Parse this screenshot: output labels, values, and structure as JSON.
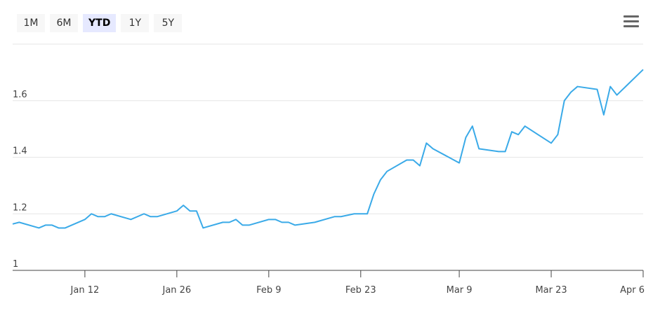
{
  "range_selector": {
    "buttons": [
      "1M",
      "6M",
      "YTD",
      "1Y",
      "5Y"
    ],
    "selected": "YTD"
  },
  "menu_icon": "hamburger-icon",
  "chart_data": {
    "type": "line",
    "title": "",
    "xlabel": "",
    "ylabel": "",
    "ylim": [
      1,
      1.8
    ],
    "yticks": [
      "1",
      "1.2",
      "1.4",
      "1.6"
    ],
    "xticks": [
      "Jan 12",
      "Jan 26",
      "Feb 9",
      "Feb 23",
      "Mar 9",
      "Mar 23",
      "Apr 6"
    ],
    "xrange": [
      "Jan 1",
      "Apr 6"
    ],
    "grid": true,
    "line_color": "#3aaae8",
    "series": [
      {
        "x": [
          "Jan 1",
          "Jan 2",
          "Jan 5",
          "Jan 6",
          "Jan 7",
          "Jan 8",
          "Jan 9",
          "Jan 12",
          "Jan 13",
          "Jan 14",
          "Jan 15",
          "Jan 16",
          "Jan 19",
          "Jan 21",
          "Jan 22",
          "Jan 23",
          "Jan 26",
          "Jan 27",
          "Jan 28",
          "Jan 29",
          "Jan 30",
          "Feb 2",
          "Feb 3",
          "Feb 4",
          "Feb 5",
          "Feb 6",
          "Feb 9",
          "Feb 10",
          "Feb 11",
          "Feb 12",
          "Feb 13",
          "Feb 16",
          "Feb 19",
          "Feb 20",
          "Feb 22",
          "Feb 23",
          "Feb 24",
          "Feb 25",
          "Feb 26",
          "Feb 27",
          "Mar 1",
          "Mar 2",
          "Mar 3",
          "Mar 4",
          "Mar 5",
          "Mar 9",
          "Mar 10",
          "Mar 11",
          "Mar 12",
          "Mar 15",
          "Mar 16",
          "Mar 17",
          "Mar 18",
          "Mar 19",
          "Mar 23",
          "Mar 24",
          "Mar 25",
          "Mar 26",
          "Mar 27",
          "Mar 30",
          "Mar 31",
          "Apr 1",
          "Apr 2",
          "Apr 6"
        ],
        "values": [
          1.164,
          1.17,
          1.15,
          1.16,
          1.16,
          1.15,
          1.15,
          1.18,
          1.2,
          1.19,
          1.19,
          1.2,
          1.18,
          1.2,
          1.19,
          1.19,
          1.21,
          1.23,
          1.21,
          1.21,
          1.15,
          1.17,
          1.17,
          1.18,
          1.16,
          1.16,
          1.18,
          1.18,
          1.17,
          1.17,
          1.16,
          1.17,
          1.19,
          1.19,
          1.2,
          1.2,
          1.2,
          1.27,
          1.32,
          1.35,
          1.39,
          1.39,
          1.37,
          1.45,
          1.43,
          1.38,
          1.47,
          1.51,
          1.43,
          1.42,
          1.42,
          1.49,
          1.48,
          1.51,
          1.45,
          1.48,
          1.6,
          1.63,
          1.65,
          1.64,
          1.55,
          1.65,
          1.62,
          1.71
        ]
      }
    ]
  }
}
